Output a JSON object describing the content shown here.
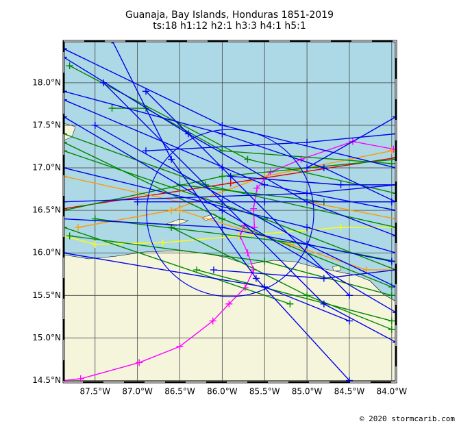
{
  "map": {
    "title": "Guanaja, Bay Islands, Honduras 1851-2019",
    "subtitle": "ts:18  h1:12  h2:1  h3:3  h4:1  h5:1",
    "credit": "© 2020 stormcarib.com",
    "xlim": [
      -87.87,
      -83.95
    ],
    "ylim": [
      14.48,
      18.49
    ],
    "xticks": [
      {
        "value": -87.5,
        "label": "87.5°W"
      },
      {
        "value": -87.0,
        "label": "87.0°W"
      },
      {
        "value": -86.5,
        "label": "86.5°W"
      },
      {
        "value": -86.0,
        "label": "86.0°W"
      },
      {
        "value": -85.5,
        "label": "85.5°W"
      },
      {
        "value": -85.0,
        "label": "85.0°W"
      },
      {
        "value": -84.5,
        "label": "84.5°W"
      },
      {
        "value": -84.0,
        "label": "84.0°W"
      }
    ],
    "yticks": [
      {
        "value": 18.0,
        "label": "18.0°N"
      },
      {
        "value": 17.5,
        "label": "17.5°N"
      },
      {
        "value": 17.0,
        "label": "17.0°N"
      },
      {
        "value": 16.5,
        "label": "16.5°N"
      },
      {
        "value": 16.0,
        "label": "16.0°N"
      },
      {
        "value": 15.5,
        "label": "15.5°N"
      },
      {
        "value": 15.0,
        "label": "15.0°N"
      },
      {
        "value": 14.5,
        "label": "14.5°N"
      }
    ],
    "grid": true,
    "tracks": [
      {
        "color": "#ff00ff",
        "points": [
          [
            -87.87,
            14.5
          ],
          [
            -87.67,
            14.52
          ],
          [
            -86.98,
            14.71
          ],
          [
            -86.5,
            14.9
          ],
          [
            -86.11,
            15.2
          ],
          [
            -85.92,
            15.4
          ],
          [
            -85.73,
            15.59
          ],
          [
            -85.63,
            15.8
          ],
          [
            -85.7,
            16.0
          ],
          [
            -85.79,
            16.2
          ],
          [
            -85.74,
            16.32
          ],
          [
            -85.62,
            16.3
          ],
          [
            -85.63,
            16.52
          ],
          [
            -85.59,
            16.76
          ],
          [
            -85.43,
            16.95
          ],
          [
            -85.07,
            17.1
          ],
          [
            -84.46,
            17.31
          ],
          [
            -83.98,
            17.22
          ]
        ]
      },
      {
        "color": "#dd0000",
        "points": [
          [
            -87.87,
            16.52
          ],
          [
            -85.9,
            16.82
          ],
          [
            -83.95,
            17.12
          ]
        ]
      },
      {
        "color": "#ff9900",
        "points": [
          [
            -87.87,
            16.9
          ],
          [
            -86.5,
            16.6
          ],
          [
            -85.0,
            16.6
          ],
          [
            -83.95,
            16.4
          ]
        ]
      },
      {
        "color": "#ff9900",
        "points": [
          [
            -87.7,
            16.3
          ],
          [
            -86.6,
            16.5
          ],
          [
            -85.5,
            16.9
          ],
          [
            -84.0,
            17.2
          ]
        ]
      },
      {
        "color": "#ff9900",
        "points": [
          [
            -86.5,
            16.5
          ],
          [
            -85.2,
            16.1
          ],
          [
            -84.3,
            15.8
          ],
          [
            -83.95,
            15.8
          ]
        ]
      },
      {
        "color": "#ffff00",
        "points": [
          [
            -87.87,
            16.2
          ],
          [
            -87.5,
            16.1
          ],
          [
            -86.7,
            16.12
          ],
          [
            -85.8,
            16.2
          ],
          [
            -84.6,
            16.3
          ],
          [
            -83.95,
            16.3
          ]
        ]
      },
      {
        "color": "#008800",
        "points": [
          [
            -87.8,
            18.2
          ],
          [
            -85.7,
            17.1
          ],
          [
            -83.95,
            16.7
          ]
        ]
      },
      {
        "color": "#008800",
        "points": [
          [
            -87.3,
            17.7
          ],
          [
            -86.9,
            17.7
          ],
          [
            -86.0,
            17.2
          ],
          [
            -84.0,
            17.05
          ]
        ]
      },
      {
        "color": "#008800",
        "points": [
          [
            -87.87,
            17.4
          ],
          [
            -86.2,
            16.8
          ],
          [
            -83.95,
            16.3
          ]
        ]
      },
      {
        "color": "#008800",
        "points": [
          [
            -87.87,
            17.2
          ],
          [
            -85.5,
            16.4
          ],
          [
            -83.95,
            15.8
          ]
        ]
      },
      {
        "color": "#008800",
        "points": [
          [
            -87.87,
            17.3
          ],
          [
            -86.0,
            16.4
          ],
          [
            -84.0,
            15.6
          ]
        ]
      },
      {
        "color": "#008800",
        "points": [
          [
            -87.5,
            16.4
          ],
          [
            -85.0,
            16.1
          ],
          [
            -83.95,
            15.9
          ]
        ]
      },
      {
        "color": "#008800",
        "points": [
          [
            -87.87,
            16.5
          ],
          [
            -86.0,
            16.9
          ],
          [
            -83.95,
            17.1
          ]
        ]
      },
      {
        "color": "#008800",
        "points": [
          [
            -87.8,
            16.2
          ],
          [
            -85.5,
            15.9
          ],
          [
            -84.0,
            15.5
          ]
        ]
      },
      {
        "color": "#008800",
        "points": [
          [
            -86.6,
            16.3
          ],
          [
            -85.0,
            15.5
          ],
          [
            -84.0,
            15.1
          ]
        ]
      },
      {
        "color": "#008800",
        "points": [
          [
            -87.87,
            16.3
          ],
          [
            -85.2,
            15.4
          ]
        ]
      },
      {
        "color": "#008800",
        "points": [
          [
            -86.3,
            15.8
          ],
          [
            -84.0,
            15.2
          ]
        ]
      },
      {
        "color": "#008800",
        "points": [
          [
            -86.5,
            16.8
          ],
          [
            -84.8,
            16.6
          ],
          [
            -83.95,
            16.6
          ]
        ]
      },
      {
        "color": "#0000ee",
        "points": [
          [
            -87.87,
            18.4
          ],
          [
            -86.0,
            17.5
          ],
          [
            -83.95,
            17.0
          ]
        ]
      },
      {
        "color": "#0000ee",
        "points": [
          [
            -87.87,
            17.9
          ],
          [
            -86.0,
            17.4
          ],
          [
            -84.8,
            17.0
          ],
          [
            -83.95,
            16.6
          ]
        ]
      },
      {
        "color": "#0000ee",
        "points": [
          [
            -87.4,
            18.0
          ],
          [
            -86.0,
            16.6
          ],
          [
            -84.8,
            15.4
          ],
          [
            -83.95,
            14.95
          ]
        ]
      },
      {
        "color": "#0000ee",
        "points": [
          [
            -87.3,
            18.5
          ],
          [
            -86.6,
            17.1
          ],
          [
            -85.6,
            15.7
          ],
          [
            -84.5,
            14.5
          ]
        ]
      },
      {
        "color": "#0000ee",
        "points": [
          [
            -86.9,
            17.9
          ],
          [
            -86.0,
            17.0
          ],
          [
            -84.5,
            15.5
          ]
        ]
      },
      {
        "color": "#0000ee",
        "points": [
          [
            -87.87,
            17.8
          ],
          [
            -85.5,
            16.8
          ],
          [
            -83.95,
            16.5
          ]
        ]
      },
      {
        "color": "#0000ee",
        "points": [
          [
            -87.87,
            16.6
          ],
          [
            -85.0,
            16.7
          ],
          [
            -83.95,
            16.8
          ]
        ]
      },
      {
        "color": "#0000ee",
        "points": [
          [
            -87.87,
            16.4
          ],
          [
            -86.0,
            16.3
          ],
          [
            -84.0,
            15.9
          ]
        ]
      },
      {
        "color": "#0000ee",
        "points": [
          [
            -87.87,
            17.0
          ],
          [
            -85.0,
            16.3
          ],
          [
            -83.95,
            16.0
          ]
        ]
      },
      {
        "color": "#0000ee",
        "points": [
          [
            -87.5,
            17.5
          ],
          [
            -85.0,
            16.1
          ],
          [
            -83.95,
            15.6
          ]
        ]
      },
      {
        "color": "#0000ee",
        "points": [
          [
            -87.87,
            17.6
          ],
          [
            -86.0,
            16.5
          ],
          [
            -83.95,
            15.3
          ]
        ]
      },
      {
        "color": "#0000ee",
        "points": [
          [
            -85.0,
            17.0
          ],
          [
            -83.95,
            17.6
          ]
        ]
      },
      {
        "color": "#0000ee",
        "points": [
          [
            -86.9,
            17.2
          ],
          [
            -85.0,
            17.3
          ],
          [
            -83.95,
            17.4
          ]
        ]
      },
      {
        "color": "#0000ee",
        "points": [
          [
            -87.87,
            16.0
          ],
          [
            -85.5,
            15.6
          ],
          [
            -84.5,
            15.2
          ]
        ]
      },
      {
        "color": "#0000ee",
        "points": [
          [
            -86.1,
            15.8
          ],
          [
            -84.8,
            15.7
          ],
          [
            -83.95,
            15.8
          ]
        ]
      },
      {
        "color": "#0000ee",
        "points": [
          [
            -87.87,
            18.3
          ],
          [
            -86.4,
            17.4
          ],
          [
            -85.0,
            16.6
          ],
          [
            -83.95,
            16.2
          ]
        ]
      },
      {
        "color": "#0000ee",
        "points": [
          [
            -85.9,
            16.9
          ],
          [
            -84.6,
            16.8
          ],
          [
            -83.95,
            16.8
          ]
        ]
      },
      {
        "color": "#0000ee",
        "points": [
          [
            -87.0,
            16.6
          ],
          [
            -85.5,
            16.6
          ],
          [
            -84.0,
            16.6
          ]
        ]
      }
    ]
  }
}
